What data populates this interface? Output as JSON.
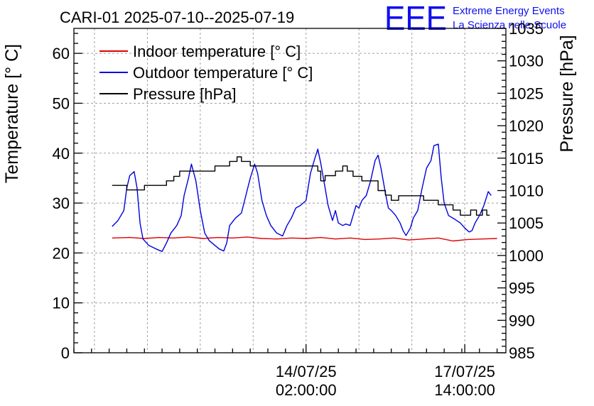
{
  "header": {
    "title": "CARI-01 2025-07-10--2025-07-19",
    "logo_text": "EEE",
    "logo_line1": "Extreme Energy Events",
    "logo_line2": "La Scienza nelle Scuole",
    "logo_color": "#1010ee"
  },
  "chart_data": {
    "type": "line",
    "title": "CARI-01 2025-07-10--2025-07-19",
    "ylabel_left": "Temperature [° C]",
    "ylabel_right": "Pressure [hPa]",
    "ylim_left": [
      0,
      65
    ],
    "ylim_right": [
      985,
      1035
    ],
    "yticks_left": [
      "0",
      "10",
      "20",
      "30",
      "40",
      "50",
      "60"
    ],
    "yticks_right": [
      "985",
      "990",
      "995",
      "1000",
      "1005",
      "1010",
      "1015",
      "1020",
      "1025",
      "1030",
      "1035"
    ],
    "xlim_hours": [
      -108,
      186
    ],
    "xlabels": [
      {
        "hour": 50,
        "line1": "14/07/25",
        "line2": "02:00:00"
      },
      {
        "hour": 158,
        "line1": "17/07/25",
        "line2": "14:00:00"
      }
    ],
    "legend_position": "top-left",
    "series": [
      {
        "name": "Indoor temperature [° C]",
        "axis": "left",
        "color": "#e00000",
        "points": [
          [
            -82,
            23.0
          ],
          [
            -70,
            23.1
          ],
          [
            -60,
            22.9
          ],
          [
            -50,
            23.1
          ],
          [
            -40,
            23.0
          ],
          [
            -30,
            23.2
          ],
          [
            -20,
            22.9
          ],
          [
            -10,
            23.1
          ],
          [
            0,
            23.0
          ],
          [
            10,
            23.2
          ],
          [
            20,
            22.9
          ],
          [
            30,
            22.8
          ],
          [
            40,
            23.0
          ],
          [
            50,
            22.9
          ],
          [
            60,
            23.1
          ],
          [
            70,
            22.8
          ],
          [
            80,
            23.0
          ],
          [
            90,
            22.7
          ],
          [
            100,
            22.8
          ],
          [
            110,
            23.0
          ],
          [
            120,
            22.6
          ],
          [
            130,
            22.8
          ],
          [
            140,
            23.0
          ],
          [
            150,
            22.4
          ],
          [
            160,
            22.7
          ],
          [
            170,
            22.8
          ],
          [
            180,
            22.9
          ]
        ]
      },
      {
        "name": "Outdoor temperature [° C]",
        "axis": "left",
        "color": "#0000dd",
        "points": [
          [
            -82,
            25.3
          ],
          [
            -78,
            26.5
          ],
          [
            -74,
            28.5
          ],
          [
            -72,
            33
          ],
          [
            -70,
            35.5
          ],
          [
            -67,
            36.3
          ],
          [
            -65,
            33
          ],
          [
            -63,
            26
          ],
          [
            -61,
            22.8
          ],
          [
            -57,
            21.5
          ],
          [
            -52,
            20.8
          ],
          [
            -48,
            20.3
          ],
          [
            -45,
            22
          ],
          [
            -42,
            24
          ],
          [
            -38,
            25.5
          ],
          [
            -35,
            27.5
          ],
          [
            -33,
            31.5
          ],
          [
            -30,
            35
          ],
          [
            -28,
            37.8
          ],
          [
            -25,
            34.5
          ],
          [
            -22,
            28.5
          ],
          [
            -19,
            24
          ],
          [
            -16,
            22.5
          ],
          [
            -12,
            21.5
          ],
          [
            -9,
            20.8
          ],
          [
            -6,
            20.4
          ],
          [
            -4,
            22
          ],
          [
            -2,
            25.5
          ],
          [
            2,
            27
          ],
          [
            6,
            28
          ],
          [
            9,
            31.5
          ],
          [
            12,
            35
          ],
          [
            15,
            37.8
          ],
          [
            17,
            36
          ],
          [
            20,
            30.5
          ],
          [
            23,
            27.5
          ],
          [
            26,
            25.5
          ],
          [
            30,
            24
          ],
          [
            34,
            23.4
          ],
          [
            37,
            25.5
          ],
          [
            40,
            27
          ],
          [
            43,
            29
          ],
          [
            46,
            29.5
          ],
          [
            50,
            30.5
          ],
          [
            53,
            36
          ],
          [
            56,
            39
          ],
          [
            58,
            40.8
          ],
          [
            60,
            38
          ],
          [
            63,
            33
          ],
          [
            65,
            29.5
          ],
          [
            68,
            26.5
          ],
          [
            70,
            28.5
          ],
          [
            72,
            26
          ],
          [
            75,
            25.5
          ],
          [
            77,
            25.8
          ],
          [
            80,
            25.5
          ],
          [
            82,
            27.5
          ],
          [
            84,
            29.5
          ],
          [
            86,
            29
          ],
          [
            88,
            30.5
          ],
          [
            91,
            31.5
          ],
          [
            94,
            34.5
          ],
          [
            97,
            38.5
          ],
          [
            99,
            39.6
          ],
          [
            101,
            37
          ],
          [
            104,
            32
          ],
          [
            106,
            29
          ],
          [
            108,
            28.5
          ],
          [
            111,
            27.5
          ],
          [
            114,
            26
          ],
          [
            116,
            24.5
          ],
          [
            118,
            23.5
          ],
          [
            121,
            25
          ],
          [
            123,
            27
          ],
          [
            126,
            28.5
          ],
          [
            129,
            33
          ],
          [
            132,
            37
          ],
          [
            135,
            38.5
          ],
          [
            137,
            41.5
          ],
          [
            140,
            41.8
          ],
          [
            142,
            35
          ],
          [
            144,
            30
          ],
          [
            147,
            27.5
          ],
          [
            151,
            26.8
          ],
          [
            155,
            26
          ],
          [
            158,
            25
          ],
          [
            161,
            24.2
          ],
          [
            163,
            24.5
          ],
          [
            165,
            26
          ],
          [
            168,
            27.5
          ],
          [
            171,
            29.5
          ],
          [
            174,
            32.3
          ],
          [
            176,
            31.5
          ]
        ]
      },
      {
        "name": "Pressure [hPa]",
        "axis": "right",
        "color": "#000000",
        "points": [
          [
            -82,
            1010.8
          ],
          [
            -72,
            1010.8
          ],
          [
            -72,
            1010.1
          ],
          [
            -60,
            1010.1
          ],
          [
            -60,
            1010.8
          ],
          [
            -45,
            1010.8
          ],
          [
            -45,
            1011.5
          ],
          [
            -40,
            1011.5
          ],
          [
            -40,
            1012.2
          ],
          [
            -36,
            1012.2
          ],
          [
            -36,
            1013.0
          ],
          [
            -12,
            1013.0
          ],
          [
            -12,
            1013.8
          ],
          [
            -2,
            1013.8
          ],
          [
            -2,
            1014.5
          ],
          [
            3,
            1014.5
          ],
          [
            3,
            1015.2
          ],
          [
            6,
            1015.2
          ],
          [
            6,
            1014.5
          ],
          [
            12,
            1014.5
          ],
          [
            12,
            1013.8
          ],
          [
            58,
            1013.8
          ],
          [
            58,
            1013.0
          ],
          [
            60,
            1013.0
          ],
          [
            60,
            1011.5
          ],
          [
            63,
            1011.5
          ],
          [
            63,
            1012.3
          ],
          [
            70,
            1012.3
          ],
          [
            70,
            1013.0
          ],
          [
            75,
            1013.0
          ],
          [
            75,
            1013.8
          ],
          [
            78,
            1013.8
          ],
          [
            78,
            1013.0
          ],
          [
            82,
            1013.0
          ],
          [
            82,
            1012.2
          ],
          [
            88,
            1012.2
          ],
          [
            88,
            1011.5
          ],
          [
            99,
            1011.5
          ],
          [
            99,
            1010.0
          ],
          [
            104,
            1010.0
          ],
          [
            104,
            1009.3
          ],
          [
            108,
            1009.3
          ],
          [
            108,
            1008.5
          ],
          [
            113,
            1008.5
          ],
          [
            113,
            1009.2
          ],
          [
            130,
            1009.2
          ],
          [
            130,
            1008.5
          ],
          [
            140,
            1008.5
          ],
          [
            140,
            1007.8
          ],
          [
            150,
            1007.8
          ],
          [
            150,
            1007.0
          ],
          [
            155,
            1007.0
          ],
          [
            155,
            1006.2
          ],
          [
            162,
            1006.2
          ],
          [
            162,
            1007.0
          ],
          [
            166,
            1007.0
          ],
          [
            166,
            1006.2
          ],
          [
            170,
            1006.2
          ],
          [
            170,
            1007.0
          ],
          [
            173,
            1007.0
          ],
          [
            173,
            1006.2
          ],
          [
            175,
            1006.2
          ]
        ]
      }
    ]
  }
}
